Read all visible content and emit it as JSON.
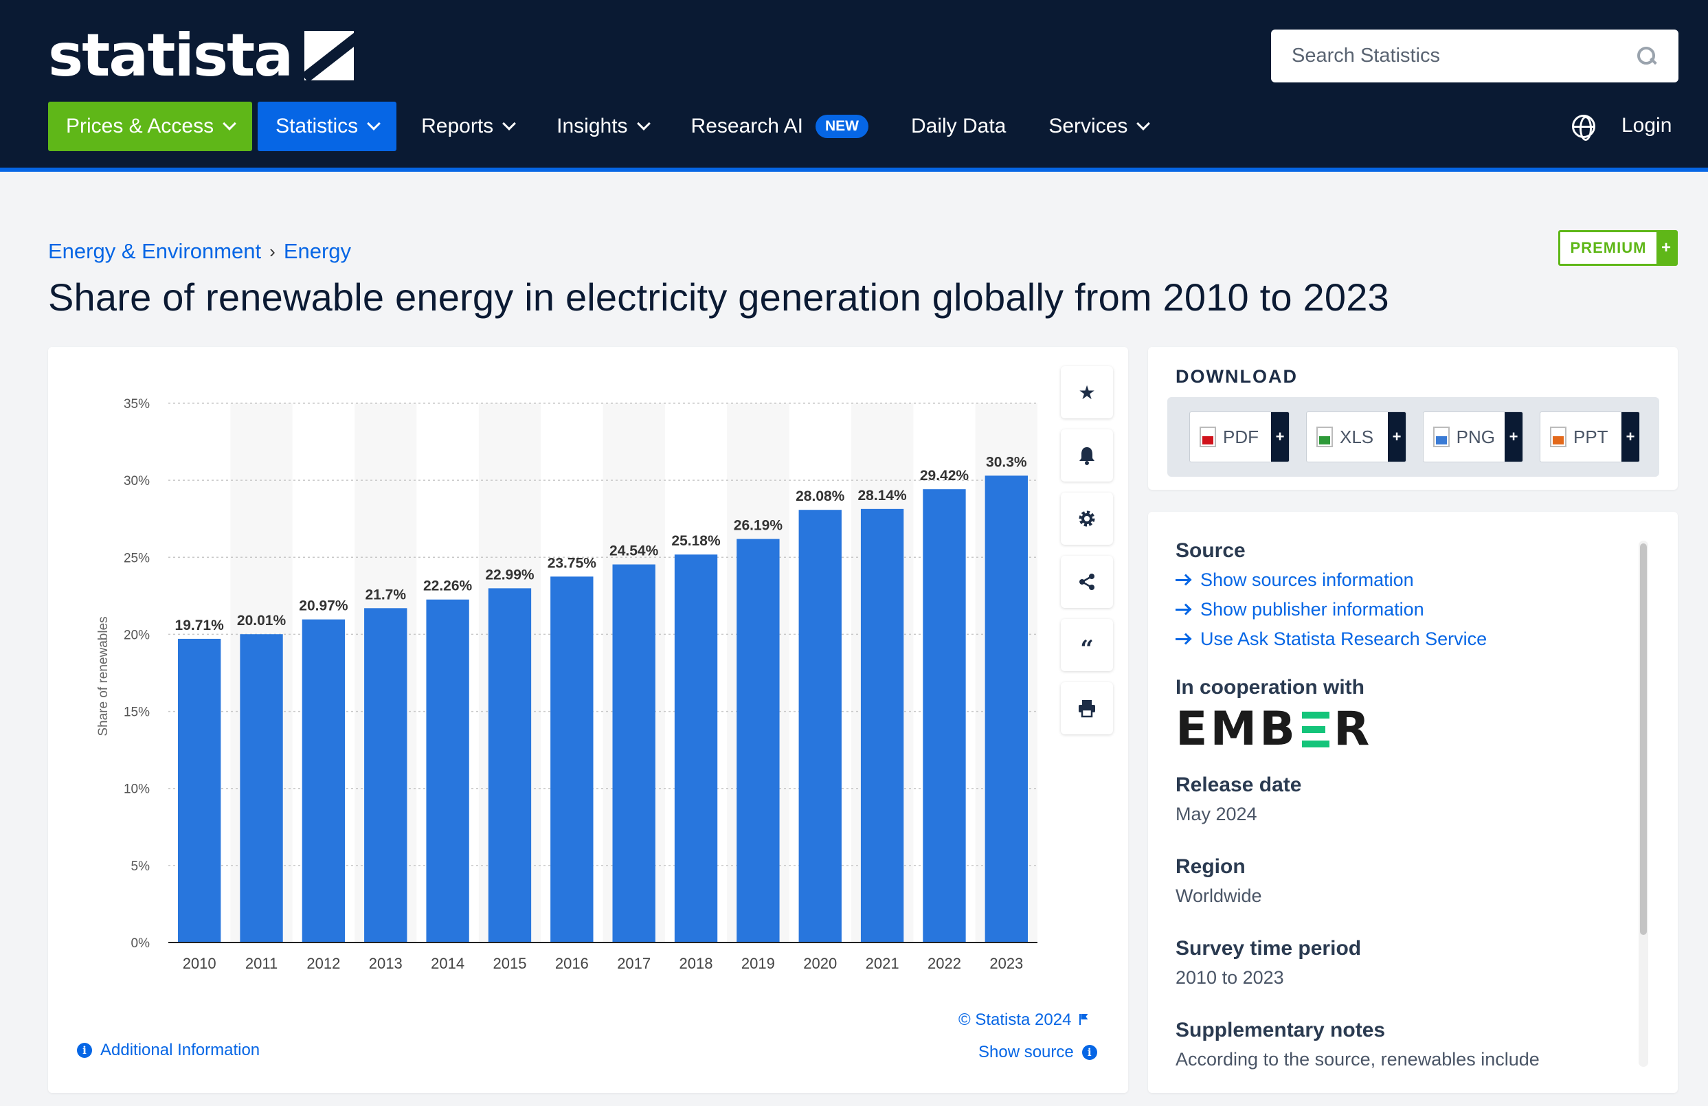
{
  "brand": {
    "logo_text": "statista"
  },
  "header": {
    "search_placeholder": "Search Statistics",
    "nav": [
      {
        "label": "Prices & Access",
        "dropdown": true
      },
      {
        "label": "Statistics",
        "dropdown": true
      },
      {
        "label": "Reports",
        "dropdown": true
      },
      {
        "label": "Insights",
        "dropdown": true
      },
      {
        "label": "Research AI",
        "badge": "NEW"
      },
      {
        "label": "Daily Data"
      },
      {
        "label": "Services",
        "dropdown": true
      }
    ],
    "login": "Login"
  },
  "breadcrumb": [
    "Energy & Environment",
    "Energy"
  ],
  "breadcrumb_sep": "›",
  "premium": {
    "label": "PREMIUM",
    "plus": "+"
  },
  "page_title": "Share of renewable energy in electricity generation globally from 2010 to 2023",
  "chart_data": {
    "type": "bar",
    "categories": [
      "2010",
      "2011",
      "2012",
      "2013",
      "2014",
      "2015",
      "2016",
      "2017",
      "2018",
      "2019",
      "2020",
      "2021",
      "2022",
      "2023"
    ],
    "values": [
      19.71,
      20.01,
      20.97,
      21.7,
      22.26,
      22.99,
      23.75,
      24.54,
      25.18,
      26.19,
      28.08,
      28.14,
      29.42,
      30.3
    ],
    "value_labels": [
      "19.71%",
      "20.01%",
      "20.97%",
      "21.7%",
      "22.26%",
      "22.99%",
      "23.75%",
      "24.54%",
      "25.18%",
      "26.19%",
      "28.08%",
      "28.14%",
      "29.42%",
      "30.3%"
    ],
    "ylabel": "Share of renewables",
    "ylim": [
      0,
      35
    ],
    "yticks": [
      "0%",
      "5%",
      "10%",
      "15%",
      "20%",
      "25%",
      "30%",
      "35%"
    ],
    "color": "#2876dd",
    "grid": true
  },
  "chart_footer": {
    "copyright": "© Statista 2024",
    "show_source": "Show source",
    "additional_info": "Additional Information"
  },
  "tools": [
    "star-icon",
    "bell-icon",
    "gear-icon",
    "share-icon",
    "quote-icon",
    "print-icon"
  ],
  "download": {
    "title": "DOWNLOAD",
    "buttons": [
      {
        "label": "PDF",
        "color": "#d0121b"
      },
      {
        "label": "XLS",
        "color": "#2e9a39"
      },
      {
        "label": "PNG",
        "color": "#3a7bd5"
      },
      {
        "label": "PPT",
        "color": "#e3691b"
      }
    ],
    "plus": "+"
  },
  "info": {
    "source_title": "Source",
    "links": [
      "Show sources information",
      "Show publisher information",
      "Use Ask Statista Research Service"
    ],
    "cooperation_title": "In cooperation with",
    "partner_logo": "EMBER",
    "release_title": "Release date",
    "release_value": "May 2024",
    "region_title": "Region",
    "region_value": "Worldwide",
    "period_title": "Survey time period",
    "period_value": "2010 to 2023",
    "notes_title": "Supplementary notes",
    "notes_value": "According to the source, renewables include"
  }
}
